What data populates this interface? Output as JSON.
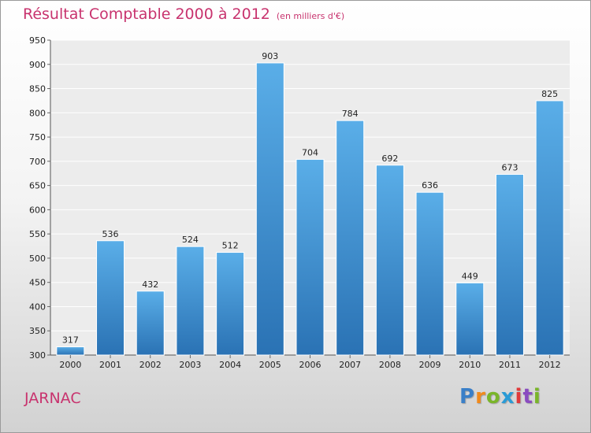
{
  "header": {
    "title": "Résultat Comptable 2000 à 2012",
    "unit_note": "(en milliers d'€)"
  },
  "place_name": "JARNAC",
  "logo": {
    "text": "Proxiti",
    "letters": [
      "P",
      "r",
      "o",
      "x",
      "i",
      "t",
      "i"
    ]
  },
  "colors": {
    "bar_top": "#5aaee8",
    "bar_bottom": "#2a72b4",
    "title": "#c8336e"
  },
  "chart_data": {
    "type": "bar",
    "title": "Résultat Comptable 2000 à 2012",
    "xlabel": "",
    "ylabel": "",
    "categories": [
      "2000",
      "2001",
      "2002",
      "2003",
      "2004",
      "2005",
      "2006",
      "2007",
      "2008",
      "2009",
      "2010",
      "2011",
      "2012"
    ],
    "values": [
      317,
      536,
      432,
      524,
      512,
      903,
      704,
      784,
      692,
      636,
      449,
      673,
      825
    ],
    "ylim": [
      300,
      950
    ],
    "yticks": [
      300,
      350,
      400,
      450,
      500,
      550,
      600,
      650,
      700,
      750,
      800,
      850,
      900,
      950
    ],
    "grid": true
  }
}
